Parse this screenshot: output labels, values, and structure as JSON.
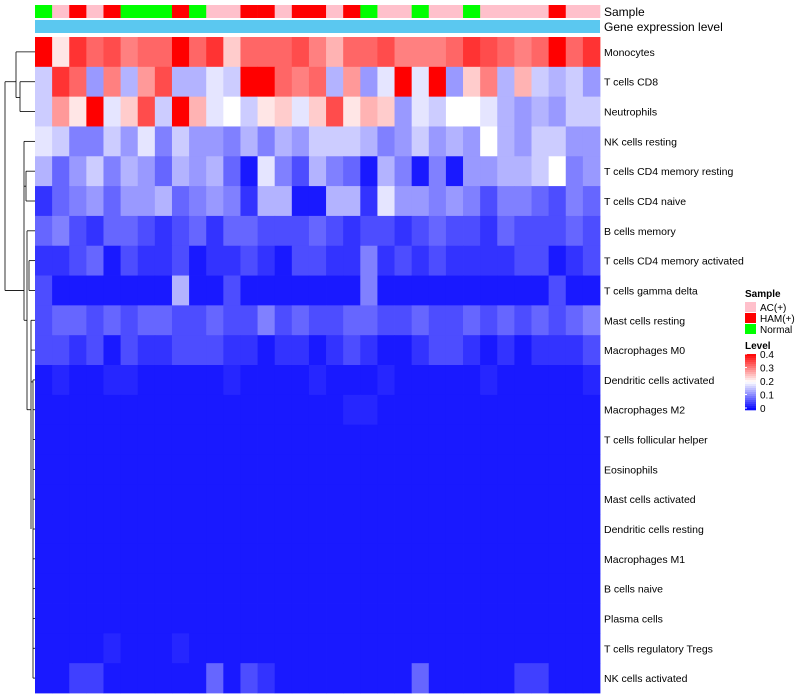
{
  "chart_data": {
    "type": "heatmap",
    "title": "",
    "annotation_tracks": [
      "Sample",
      "Gene expression level"
    ],
    "legends": {
      "sample": {
        "title": "Sample",
        "entries": [
          {
            "label": "AC(+)",
            "color": "#ffc0cb"
          },
          {
            "label": "HAM(+)",
            "color": "#ff0000"
          },
          {
            "label": "Normal",
            "color": "#00ff00"
          }
        ]
      },
      "level": {
        "title": "Level",
        "ticks": [
          "0.4",
          "0.3",
          "0.2",
          "0.1",
          "0"
        ],
        "range": [
          0,
          0.4
        ]
      }
    },
    "colors": {
      "low": "#0000ff",
      "mid": "#ffffff",
      "high": "#ff0000",
      "track": "#5bc8f0",
      "AC": "#ffc0cb",
      "HAM": "#ff0000",
      "Normal": "#00ff00"
    },
    "samples": [
      "N",
      "A",
      "H",
      "A",
      "H",
      "N",
      "N",
      "N",
      "H",
      "N",
      "A",
      "A",
      "H",
      "H",
      "A",
      "H",
      "H",
      "A",
      "H",
      "N",
      "A",
      "A",
      "N",
      "A",
      "A",
      "N",
      "A",
      "A",
      "A",
      "A",
      "H",
      "A",
      "A"
    ],
    "rows": [
      "Monocytes",
      "T cells CD8",
      "Neutrophils",
      "NK cells resting",
      "T cells CD4 memory resting",
      "T cells CD4 naive",
      "B cells memory",
      "T cells CD4 memory activated",
      "T cells gamma delta",
      "Mast cells resting",
      "Macrophages M0",
      "Dendritic cells activated",
      "Macrophages M2",
      "T cells follicular helper",
      "Eosinophils",
      "Mast cells activated",
      "Dendritic cells resting",
      "Macrophages M1",
      "B cells naive",
      "Plasma cells",
      "T cells regulatory  Tregs",
      "NK cells activated"
    ],
    "values": [
      [
        0.4,
        0.22,
        0.36,
        0.32,
        0.34,
        0.3,
        0.32,
        0.32,
        0.4,
        0.32,
        0.36,
        0.24,
        0.32,
        0.32,
        0.32,
        0.34,
        0.3,
        0.26,
        0.32,
        0.32,
        0.34,
        0.3,
        0.3,
        0.3,
        0.32,
        0.36,
        0.34,
        0.32,
        0.3,
        0.32,
        0.4,
        0.32,
        0.36
      ],
      [
        0.16,
        0.36,
        0.32,
        0.12,
        0.3,
        0.14,
        0.28,
        0.34,
        0.14,
        0.14,
        0.18,
        0.16,
        0.4,
        0.4,
        0.32,
        0.3,
        0.32,
        0.14,
        0.28,
        0.12,
        0.18,
        0.4,
        0.18,
        0.4,
        0.12,
        0.24,
        0.3,
        0.14,
        0.26,
        0.16,
        0.14,
        0.16,
        0.12
      ],
      [
        0.16,
        0.28,
        0.22,
        0.4,
        0.18,
        0.24,
        0.34,
        0.16,
        0.4,
        0.26,
        0.18,
        0.2,
        0.16,
        0.22,
        0.24,
        0.18,
        0.24,
        0.34,
        0.22,
        0.26,
        0.24,
        0.12,
        0.18,
        0.16,
        0.2,
        0.2,
        0.18,
        0.14,
        0.12,
        0.14,
        0.12,
        0.16,
        0.16
      ],
      [
        0.18,
        0.16,
        0.1,
        0.1,
        0.16,
        0.12,
        0.18,
        0.1,
        0.16,
        0.12,
        0.12,
        0.1,
        0.14,
        0.1,
        0.14,
        0.12,
        0.16,
        0.16,
        0.16,
        0.14,
        0.1,
        0.12,
        0.16,
        0.12,
        0.14,
        0.12,
        0.2,
        0.14,
        0.12,
        0.16,
        0.16,
        0.12,
        0.12
      ],
      [
        0.14,
        0.08,
        0.12,
        0.16,
        0.1,
        0.14,
        0.12,
        0.08,
        0.14,
        0.12,
        0.14,
        0.08,
        0.02,
        0.18,
        0.1,
        0.06,
        0.14,
        0.1,
        0.08,
        0.02,
        0.14,
        0.1,
        0.02,
        0.1,
        0.02,
        0.12,
        0.12,
        0.14,
        0.14,
        0.16,
        0.2,
        0.1,
        0.12
      ],
      [
        0.04,
        0.08,
        0.1,
        0.12,
        0.08,
        0.12,
        0.12,
        0.14,
        0.08,
        0.1,
        0.12,
        0.1,
        0.04,
        0.14,
        0.14,
        0.02,
        0.02,
        0.14,
        0.14,
        0.04,
        0.18,
        0.12,
        0.12,
        0.1,
        0.12,
        0.1,
        0.06,
        0.1,
        0.1,
        0.08,
        0.06,
        0.1,
        0.08
      ],
      [
        0.08,
        0.1,
        0.06,
        0.04,
        0.08,
        0.08,
        0.06,
        0.04,
        0.06,
        0.08,
        0.04,
        0.08,
        0.08,
        0.06,
        0.06,
        0.06,
        0.08,
        0.06,
        0.04,
        0.06,
        0.06,
        0.04,
        0.06,
        0.08,
        0.06,
        0.06,
        0.04,
        0.08,
        0.06,
        0.06,
        0.06,
        0.08,
        0.06
      ],
      [
        0.04,
        0.04,
        0.06,
        0.08,
        0.02,
        0.06,
        0.04,
        0.04,
        0.06,
        0.02,
        0.04,
        0.04,
        0.06,
        0.04,
        0.02,
        0.06,
        0.06,
        0.04,
        0.04,
        0.1,
        0.04,
        0.06,
        0.04,
        0.06,
        0.04,
        0.04,
        0.04,
        0.04,
        0.06,
        0.06,
        0.02,
        0.04,
        0.06
      ],
      [
        0.06,
        0.02,
        0.02,
        0.02,
        0.02,
        0.02,
        0.02,
        0.02,
        0.14,
        0.02,
        0.02,
        0.06,
        0.02,
        0.02,
        0.02,
        0.02,
        0.02,
        0.02,
        0.02,
        0.1,
        0.02,
        0.02,
        0.02,
        0.02,
        0.02,
        0.02,
        0.02,
        0.02,
        0.02,
        0.02,
        0.06,
        0.02,
        0.02
      ],
      [
        0.06,
        0.08,
        0.08,
        0.06,
        0.08,
        0.06,
        0.08,
        0.08,
        0.06,
        0.06,
        0.08,
        0.06,
        0.06,
        0.1,
        0.06,
        0.08,
        0.06,
        0.06,
        0.08,
        0.08,
        0.06,
        0.06,
        0.08,
        0.06,
        0.06,
        0.08,
        0.06,
        0.08,
        0.06,
        0.08,
        0.06,
        0.08,
        0.1
      ],
      [
        0.06,
        0.06,
        0.04,
        0.06,
        0.02,
        0.06,
        0.04,
        0.04,
        0.06,
        0.06,
        0.06,
        0.04,
        0.04,
        0.02,
        0.04,
        0.04,
        0.02,
        0.04,
        0.06,
        0.04,
        0.02,
        0.02,
        0.04,
        0.06,
        0.06,
        0.04,
        0.02,
        0.04,
        0.02,
        0.04,
        0.04,
        0.04,
        0.06
      ],
      [
        0.02,
        0.03,
        0.02,
        0.02,
        0.03,
        0.03,
        0.02,
        0.02,
        0.02,
        0.02,
        0.02,
        0.03,
        0.02,
        0.02,
        0.02,
        0.02,
        0.03,
        0.02,
        0.02,
        0.02,
        0.03,
        0.02,
        0.02,
        0.02,
        0.02,
        0.02,
        0.03,
        0.02,
        0.02,
        0.02,
        0.02,
        0.02,
        0.03
      ],
      [
        0.02,
        0.02,
        0.02,
        0.02,
        0.02,
        0.02,
        0.02,
        0.02,
        0.02,
        0.02,
        0.02,
        0.02,
        0.02,
        0.02,
        0.02,
        0.02,
        0.02,
        0.02,
        0.03,
        0.03,
        0.02,
        0.02,
        0.02,
        0.02,
        0.02,
        0.02,
        0.02,
        0.02,
        0.02,
        0.02,
        0.02,
        0.02,
        0.02
      ],
      [
        0.02,
        0.02,
        0.02,
        0.02,
        0.02,
        0.02,
        0.02,
        0.02,
        0.02,
        0.02,
        0.02,
        0.02,
        0.02,
        0.02,
        0.02,
        0.02,
        0.02,
        0.02,
        0.02,
        0.02,
        0.02,
        0.02,
        0.02,
        0.02,
        0.02,
        0.02,
        0.02,
        0.02,
        0.02,
        0.02,
        0.02,
        0.02,
        0.02
      ],
      [
        0.02,
        0.02,
        0.02,
        0.02,
        0.02,
        0.02,
        0.02,
        0.02,
        0.02,
        0.02,
        0.02,
        0.02,
        0.02,
        0.02,
        0.02,
        0.02,
        0.02,
        0.02,
        0.02,
        0.02,
        0.02,
        0.02,
        0.02,
        0.02,
        0.02,
        0.02,
        0.02,
        0.02,
        0.02,
        0.02,
        0.02,
        0.02,
        0.02
      ],
      [
        0.02,
        0.02,
        0.02,
        0.02,
        0.02,
        0.02,
        0.02,
        0.02,
        0.02,
        0.02,
        0.02,
        0.02,
        0.02,
        0.02,
        0.02,
        0.02,
        0.02,
        0.02,
        0.02,
        0.02,
        0.02,
        0.02,
        0.02,
        0.02,
        0.02,
        0.02,
        0.02,
        0.02,
        0.02,
        0.02,
        0.02,
        0.02,
        0.02
      ],
      [
        0.02,
        0.02,
        0.02,
        0.02,
        0.02,
        0.02,
        0.02,
        0.02,
        0.02,
        0.02,
        0.02,
        0.02,
        0.02,
        0.02,
        0.02,
        0.02,
        0.02,
        0.02,
        0.02,
        0.02,
        0.02,
        0.02,
        0.02,
        0.02,
        0.02,
        0.02,
        0.02,
        0.02,
        0.02,
        0.02,
        0.02,
        0.02,
        0.02
      ],
      [
        0.02,
        0.02,
        0.02,
        0.02,
        0.02,
        0.02,
        0.02,
        0.02,
        0.02,
        0.02,
        0.02,
        0.02,
        0.02,
        0.02,
        0.02,
        0.02,
        0.02,
        0.02,
        0.02,
        0.02,
        0.02,
        0.02,
        0.02,
        0.02,
        0.02,
        0.02,
        0.02,
        0.02,
        0.02,
        0.02,
        0.02,
        0.02,
        0.02
      ],
      [
        0.02,
        0.02,
        0.02,
        0.02,
        0.02,
        0.02,
        0.02,
        0.02,
        0.02,
        0.02,
        0.02,
        0.02,
        0.02,
        0.02,
        0.02,
        0.02,
        0.02,
        0.02,
        0.02,
        0.02,
        0.02,
        0.02,
        0.02,
        0.02,
        0.02,
        0.02,
        0.02,
        0.02,
        0.02,
        0.02,
        0.02,
        0.02,
        0.02
      ],
      [
        0.02,
        0.02,
        0.02,
        0.02,
        0.02,
        0.02,
        0.02,
        0.02,
        0.02,
        0.02,
        0.02,
        0.02,
        0.02,
        0.02,
        0.02,
        0.02,
        0.02,
        0.02,
        0.02,
        0.02,
        0.02,
        0.02,
        0.02,
        0.02,
        0.02,
        0.02,
        0.02,
        0.02,
        0.02,
        0.02,
        0.02,
        0.02,
        0.02
      ],
      [
        0.02,
        0.02,
        0.02,
        0.02,
        0.03,
        0.02,
        0.02,
        0.02,
        0.03,
        0.02,
        0.02,
        0.02,
        0.02,
        0.02,
        0.02,
        0.02,
        0.02,
        0.02,
        0.02,
        0.02,
        0.02,
        0.02,
        0.02,
        0.02,
        0.02,
        0.02,
        0.02,
        0.02,
        0.02,
        0.02,
        0.02,
        0.02,
        0.02
      ],
      [
        0.02,
        0.02,
        0.05,
        0.05,
        0.02,
        0.02,
        0.02,
        0.02,
        0.02,
        0.02,
        0.08,
        0.02,
        0.06,
        0.04,
        0.02,
        0.02,
        0.02,
        0.02,
        0.02,
        0.02,
        0.02,
        0.02,
        0.08,
        0.02,
        0.02,
        0.02,
        0.02,
        0.02,
        0.05,
        0.05,
        0.02,
        0.02,
        0.02
      ]
    ]
  }
}
